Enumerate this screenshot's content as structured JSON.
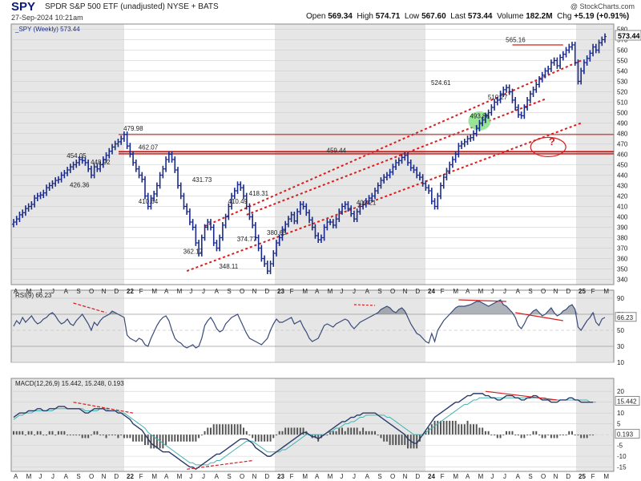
{
  "header": {
    "symbol": "SPY",
    "name": "SPDR S&P 500 ETF (unadjusted)  NYSE + BATS",
    "date": "27-Sep-2024 10:21am",
    "watermark": "@ StockCharts.com",
    "open_label": "Open",
    "open": "569.34",
    "high_label": "High",
    "high": "574.71",
    "low_label": "Low",
    "low": "567.60",
    "last_label": "Last",
    "last": "573.44",
    "volume_label": "Volume",
    "volume": "182.2M",
    "chg_label": "Chg",
    "chg": "+5.19 (+0.91%)"
  },
  "colors": {
    "price": "#1a2a8a",
    "red": "#d42020",
    "green": "#7fe07f",
    "rsi_fill": "#6b7280",
    "macd_signal": "#43b3b0",
    "panel_shade": "#e6e6e6"
  },
  "chart_data": [
    {
      "type": "ohlc",
      "legend": "_SPY (Weekly) 573.44",
      "last_value": "573.44",
      "ylim": [
        335,
        585
      ],
      "y_ticks": [
        340,
        350,
        360,
        370,
        380,
        390,
        400,
        410,
        420,
        430,
        440,
        450,
        460,
        470,
        480,
        490,
        500,
        510,
        520,
        530,
        540,
        550,
        560,
        570,
        580
      ],
      "x_month_labels": [
        "A",
        "M",
        "J",
        "J",
        "A",
        "S",
        "O",
        "N",
        "D",
        "22",
        "F",
        "M",
        "A",
        "M",
        "J",
        "J",
        "A",
        "S",
        "O",
        "N",
        "D",
        "23",
        "F",
        "M",
        "A",
        "M",
        "J",
        "J",
        "A",
        "S",
        "O",
        "N",
        "D",
        "24",
        "F",
        "M",
        "A",
        "M",
        "J",
        "J",
        "A",
        "S",
        "O",
        "N",
        "D",
        "25",
        "F",
        "M"
      ],
      "closes": [
        395,
        398,
        402,
        404,
        408,
        410,
        412,
        418,
        420,
        421,
        423,
        428,
        430,
        432,
        435,
        436,
        440,
        442,
        445,
        448,
        450,
        452,
        455,
        454,
        452,
        446,
        440,
        448,
        446,
        450,
        455,
        459,
        463,
        467,
        470,
        472,
        475,
        479,
        468,
        460,
        452,
        446,
        440,
        436,
        420,
        410,
        418,
        422,
        430,
        440,
        446,
        455,
        460,
        455,
        445,
        430,
        420,
        410,
        405,
        395,
        390,
        375,
        365,
        380,
        390,
        395,
        390,
        375,
        370,
        380,
        392,
        400,
        410,
        420,
        425,
        431,
        428,
        420,
        410,
        400,
        392,
        380,
        370,
        360,
        355,
        348,
        355,
        365,
        375,
        380,
        388,
        393,
        398,
        402,
        396,
        405,
        412,
        410,
        404,
        397,
        390,
        382,
        378,
        380,
        390,
        395,
        395,
        392,
        398,
        405,
        410,
        412,
        408,
        403,
        398,
        405,
        410,
        412,
        415,
        418,
        420,
        425,
        430,
        435,
        438,
        440,
        443,
        448,
        452,
        454,
        457,
        459,
        452,
        447,
        445,
        440,
        438,
        432,
        428,
        425,
        415,
        410,
        420,
        430,
        438,
        444,
        450,
        455,
        460,
        468,
        470,
        472,
        475,
        476,
        480,
        485,
        490,
        493,
        497,
        500,
        505,
        510,
        512,
        518,
        522,
        524,
        520,
        512,
        505,
        498,
        497,
        505,
        512,
        518,
        522,
        527,
        532,
        536,
        540,
        542,
        548,
        550,
        545,
        553,
        556,
        560,
        563,
        565,
        548,
        530,
        540,
        548,
        552,
        557,
        563,
        560,
        567,
        570,
        573
      ],
      "annotations": [
        "479.98",
        "454.05",
        "448.92",
        "426.36",
        "462.07",
        "410.64",
        "362.17",
        "431.73",
        "348.11",
        "410.49",
        "374.77",
        "418.31",
        "380.65",
        "459.44",
        "409.21",
        "524.61",
        "493.86",
        "510.27",
        "565.16",
        "?"
      ]
    },
    {
      "type": "line",
      "legend": "RSI(9) 66.23",
      "last_value": "66.23",
      "ylim": [
        10,
        100
      ],
      "y_ticks": [
        "90",
        "70",
        "50",
        "30",
        "10"
      ],
      "values": [
        55,
        62,
        58,
        66,
        60,
        64,
        68,
        62,
        58,
        60,
        64,
        66,
        70,
        72,
        68,
        62,
        58,
        60,
        64,
        58,
        56,
        62,
        66,
        70,
        64,
        58,
        50,
        60,
        56,
        62,
        66,
        68,
        70,
        74,
        72,
        70,
        68,
        66,
        44,
        40,
        38,
        36,
        40,
        38,
        32,
        30,
        40,
        48,
        56,
        62,
        66,
        68,
        62,
        50,
        40,
        36,
        34,
        30,
        28,
        30,
        32,
        28,
        30,
        40,
        56,
        62,
        66,
        60,
        52,
        48,
        50,
        58,
        62,
        66,
        68,
        70,
        62,
        54,
        46,
        40,
        38,
        36,
        34,
        32,
        36,
        40,
        50,
        58,
        64,
        60,
        60,
        62,
        64,
        66,
        58,
        60,
        62,
        54,
        48,
        40,
        36,
        38,
        40,
        48,
        56,
        58,
        56,
        54,
        58,
        60,
        62,
        64,
        62,
        56,
        52,
        56,
        60,
        62,
        64,
        66,
        68,
        70,
        72,
        76,
        78,
        80,
        78,
        74,
        72,
        76,
        78,
        74,
        66,
        58,
        52,
        46,
        44,
        40,
        36,
        34,
        46,
        36,
        50,
        56,
        62,
        66,
        70,
        74,
        78,
        80,
        80,
        80,
        81,
        82,
        84,
        86,
        86,
        84,
        82,
        80,
        82,
        84,
        86,
        88,
        82,
        80,
        76,
        72,
        66,
        56,
        52,
        58,
        66,
        70,
        74,
        76,
        72,
        68,
        70,
        74,
        78,
        72,
        68,
        70,
        74,
        76,
        80,
        82,
        76,
        54,
        50,
        56,
        62,
        66,
        72,
        60,
        56,
        64,
        66
      ]
    },
    {
      "type": "line",
      "legend": "MACD(12,26,9) 15.442, 15.248, 0.193",
      "macd_label": "15.442",
      "hist_label": "0.193",
      "ylim": [
        -17,
        26
      ],
      "y_ticks": [
        "20",
        "15",
        "10",
        "5",
        "0",
        "-5",
        "-10",
        "-15"
      ],
      "macd": [
        8,
        9,
        10,
        10,
        10,
        11,
        11,
        11,
        12,
        12,
        11,
        11,
        12,
        12,
        12,
        13,
        13,
        13,
        12,
        12,
        12,
        12,
        12,
        11,
        10,
        10,
        11,
        12,
        12,
        12,
        12,
        11,
        11,
        11,
        11,
        10,
        10,
        9,
        8,
        7,
        5,
        4,
        3,
        2,
        0,
        -2,
        -4,
        -5,
        -6,
        -7,
        -8,
        -8,
        -8,
        -9,
        -10,
        -11,
        -12,
        -13,
        -14,
        -15,
        -15,
        -16,
        -15,
        -14,
        -13,
        -12,
        -11,
        -10,
        -9,
        -9,
        -8,
        -7,
        -6,
        -5,
        -4,
        -3,
        -2,
        -2,
        -2,
        -3,
        -4,
        -6,
        -7,
        -8,
        -9,
        -10,
        -10,
        -9,
        -8,
        -7,
        -6,
        -5,
        -4,
        -3,
        -2,
        -1,
        0,
        1,
        1,
        0,
        -1,
        -1,
        -2,
        -1,
        0,
        1,
        2,
        3,
        4,
        5,
        6,
        6,
        7,
        8,
        8,
        9,
        9,
        10,
        10,
        10,
        10,
        10,
        9,
        8,
        7,
        6,
        5,
        4,
        3,
        2,
        1,
        0,
        -2,
        -3,
        -4,
        -4,
        -2,
        0,
        2,
        4,
        6,
        8,
        9,
        10,
        11,
        12,
        13,
        14,
        15,
        15,
        16,
        17,
        18,
        18,
        19,
        19,
        19,
        19,
        18,
        18,
        17,
        17,
        16,
        16,
        17,
        18,
        18,
        18,
        17,
        17,
        16,
        16,
        17,
        17,
        18,
        18,
        17,
        16,
        16,
        16,
        15,
        15,
        15,
        16,
        16,
        16,
        17,
        17,
        16,
        16,
        15,
        15,
        15,
        15,
        15
      ],
      "signal": [
        7,
        8,
        9,
        9,
        10,
        10,
        10,
        11,
        11,
        11,
        11,
        11,
        11,
        11,
        12,
        12,
        12,
        12,
        12,
        12,
        12,
        12,
        12,
        12,
        11,
        11,
        11,
        11,
        11,
        12,
        12,
        12,
        11,
        11,
        11,
        11,
        10,
        10,
        9,
        8,
        7,
        6,
        5,
        4,
        3,
        1,
        0,
        -1,
        -2,
        -3,
        -4,
        -5,
        -6,
        -7,
        -8,
        -9,
        -10,
        -11,
        -12,
        -13,
        -13,
        -14,
        -14,
        -14,
        -14,
        -14,
        -13,
        -13,
        -12,
        -12,
        -11,
        -10,
        -9,
        -8,
        -7,
        -6,
        -5,
        -4,
        -3,
        -3,
        -3,
        -4,
        -5,
        -6,
        -7,
        -8,
        -8,
        -8,
        -8,
        -8,
        -7,
        -7,
        -6,
        -5,
        -4,
        -3,
        -2,
        -1,
        0,
        0,
        0,
        0,
        0,
        0,
        0,
        1,
        1,
        2,
        3,
        3,
        4,
        5,
        5,
        6,
        6,
        7,
        8,
        8,
        9,
        9,
        9,
        9,
        9,
        9,
        9,
        8,
        8,
        7,
        6,
        5,
        4,
        3,
        2,
        1,
        0,
        0,
        0,
        0,
        1,
        2,
        3,
        4,
        5,
        6,
        7,
        8,
        9,
        10,
        11,
        12,
        13,
        14,
        14,
        15,
        16,
        16,
        17,
        17,
        17,
        17,
        17,
        17,
        17,
        17,
        17,
        17,
        17,
        17,
        17,
        17,
        17,
        17,
        17,
        17,
        17,
        17,
        17,
        17,
        17,
        16,
        16,
        16,
        16,
        16,
        16,
        16,
        16,
        16,
        16,
        16,
        16,
        16,
        16,
        15,
        15,
        15
      ]
    }
  ]
}
